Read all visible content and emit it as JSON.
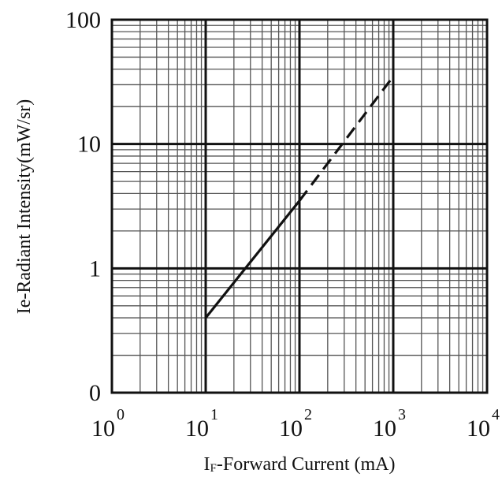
{
  "chart_data": {
    "type": "line",
    "xscale": "log",
    "yscale": "log",
    "xlim": [
      1,
      10000
    ],
    "ylim": [
      0.1,
      100
    ],
    "grid": true,
    "xlabel": {
      "prefix": "I",
      "sub": "F",
      "suffix": "-Forward Current (mA)"
    },
    "ylabel": "Ie-Radiant Intensity(mW/sr)",
    "xticks": [
      {
        "value": 1,
        "base": "10",
        "exp": "0"
      },
      {
        "value": 10,
        "base": "10",
        "exp": "1"
      },
      {
        "value": 100,
        "base": "10",
        "exp": "2"
      },
      {
        "value": 1000,
        "base": "10",
        "exp": "3"
      },
      {
        "value": 10000,
        "base": "10",
        "exp": "4"
      }
    ],
    "yticks": [
      {
        "value": 0.1,
        "label": "0"
      },
      {
        "value": 1,
        "label": "1"
      },
      {
        "value": 10,
        "label": "10"
      },
      {
        "value": 100,
        "label": "100"
      }
    ],
    "series": [
      {
        "style": "solid",
        "x": [
          10,
          100
        ],
        "y": [
          0.4,
          3.5
        ]
      },
      {
        "style": "dashed",
        "x": [
          100,
          1000
        ],
        "y": [
          3.5,
          35
        ]
      }
    ]
  }
}
